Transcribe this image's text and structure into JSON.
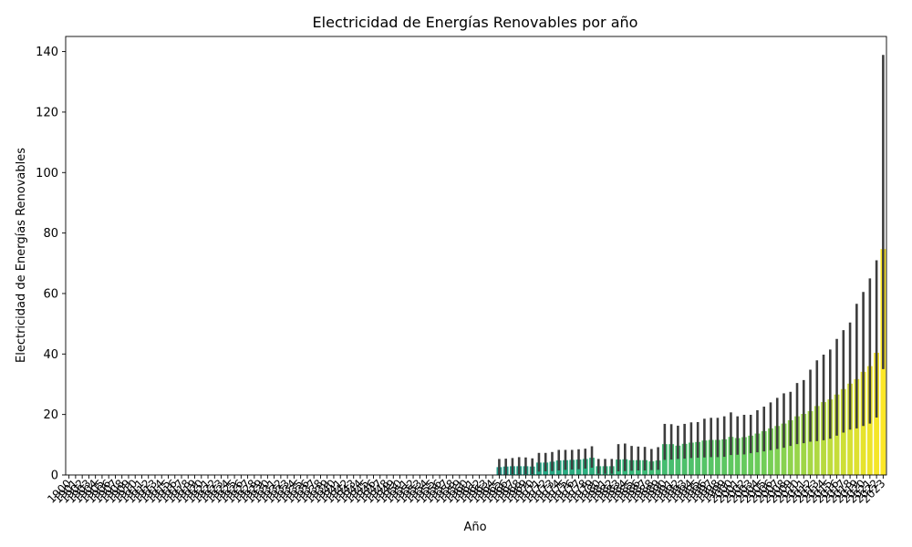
{
  "chart_data": {
    "type": "bar",
    "title": "Electricidad de Energías Renovables por año",
    "xlabel": "Año",
    "ylabel": "Electricidad de Energías Renovables",
    "ylim": [
      0,
      145
    ],
    "yticks": [
      0,
      20,
      40,
      60,
      80,
      100,
      120,
      140
    ],
    "grid": false,
    "legend": "none",
    "palette": "viridis",
    "categories": [
      "1900",
      "1901",
      "1902",
      "1903",
      "1904",
      "1905",
      "1906",
      "1907",
      "1908",
      "1909",
      "1910",
      "1911",
      "1912",
      "1913",
      "1914",
      "1915",
      "1916",
      "1917",
      "1918",
      "1919",
      "1920",
      "1921",
      "1922",
      "1923",
      "1924",
      "1925",
      "1926",
      "1927",
      "1928",
      "1929",
      "1930",
      "1931",
      "1932",
      "1933",
      "1934",
      "1935",
      "1936",
      "1937",
      "1938",
      "1939",
      "1940",
      "1941",
      "1942",
      "1943",
      "1944",
      "1945",
      "1946",
      "1947",
      "1948",
      "1949",
      "1950",
      "1951",
      "1952",
      "1953",
      "1954",
      "1955",
      "1956",
      "1957",
      "1958",
      "1959",
      "1960",
      "1961",
      "1962",
      "1963",
      "1964",
      "1965",
      "1966",
      "1967",
      "1968",
      "1969",
      "1970",
      "1971",
      "1972",
      "1973",
      "1974",
      "1975",
      "1976",
      "1977",
      "1978",
      "1979",
      "1980",
      "1981",
      "1982",
      "1983",
      "1984",
      "1985",
      "1986",
      "1987",
      "1988",
      "1989",
      "1990",
      "1991",
      "1992",
      "1993",
      "1994",
      "1995",
      "1996",
      "1997",
      "1998",
      "1999",
      "2000",
      "2001",
      "2002",
      "2003",
      "2004",
      "2005",
      "2006",
      "2007",
      "2008",
      "2009",
      "2010",
      "2011",
      "2012",
      "2013",
      "2014",
      "2015",
      "2016",
      "2017",
      "2018",
      "2019",
      "2020",
      "2021",
      "2022",
      "2023"
    ],
    "values": [
      0,
      0,
      0,
      0,
      0,
      0,
      0,
      0,
      0,
      0,
      0,
      0,
      0,
      0,
      0,
      0,
      0,
      0,
      0,
      0,
      0,
      0,
      0,
      0,
      0,
      0,
      0,
      0,
      0,
      0,
      0,
      0,
      0,
      0,
      0,
      0,
      0,
      0,
      0,
      0,
      0,
      0,
      0,
      0,
      0,
      0,
      0,
      0,
      0,
      0,
      0,
      0,
      0,
      0,
      0,
      0,
      0,
      0,
      0,
      0,
      0,
      0,
      0,
      0,
      0,
      2.6,
      2.8,
      2.9,
      2.9,
      2.9,
      2.8,
      4.1,
      4.1,
      4.4,
      4.8,
      4.9,
      5.0,
      5.1,
      5.3,
      5.7,
      2.9,
      2.9,
      2.9,
      5.1,
      5.2,
      4.9,
      4.9,
      4.9,
      4.5,
      4.8,
      10.2,
      10.2,
      9.7,
      10.3,
      10.7,
      10.9,
      11.4,
      11.6,
      11.6,
      11.8,
      12.6,
      12.2,
      12.5,
      13.0,
      13.7,
      14.5,
      15.4,
      16.2,
      17.0,
      18.1,
      19.4,
      20.2,
      21.1,
      22.8,
      24.1,
      25.0,
      26.6,
      28.4,
      30.2,
      31.7,
      34.1,
      36.0,
      40.4,
      74.7
    ],
    "error_high": [
      0,
      0,
      0,
      0,
      0,
      0,
      0,
      0,
      0,
      0,
      0,
      0,
      0,
      0,
      0,
      0,
      0,
      0,
      0,
      0,
      0,
      0,
      0,
      0,
      0,
      0,
      0,
      0,
      0,
      0,
      0,
      0,
      0,
      0,
      0,
      0,
      0,
      0,
      0,
      0,
      0,
      0,
      0,
      0,
      0,
      0,
      0,
      0,
      0,
      0,
      0,
      0,
      0,
      0,
      0,
      0,
      0,
      0,
      0,
      0,
      0,
      0,
      0,
      0,
      0,
      5.3,
      5.4,
      5.6,
      5.9,
      5.8,
      5.5,
      7.3,
      7.3,
      7.6,
      8.3,
      8.3,
      8.3,
      8.5,
      8.7,
      9.5,
      5.3,
      5.3,
      5.3,
      10.2,
      10.4,
      9.6,
      9.4,
      9.3,
      8.6,
      9.2,
      16.9,
      16.8,
      16.3,
      16.9,
      17.4,
      17.5,
      18.6,
      18.9,
      18.9,
      19.4,
      20.7,
      19.4,
      19.9,
      19.9,
      21.4,
      22.6,
      24.0,
      25.5,
      27.0,
      27.5,
      30.4,
      31.4,
      34.8,
      37.9,
      39.8,
      41.5,
      45.0,
      47.9,
      50.4,
      56.6,
      60.5,
      65.0,
      71.0,
      138.9
    ],
    "error_low": [
      0,
      0,
      0,
      0,
      0,
      0,
      0,
      0,
      0,
      0,
      0,
      0,
      0,
      0,
      0,
      0,
      0,
      0,
      0,
      0,
      0,
      0,
      0,
      0,
      0,
      0,
      0,
      0,
      0,
      0,
      0,
      0,
      0,
      0,
      0,
      0,
      0,
      0,
      0,
      0,
      0,
      0,
      0,
      0,
      0,
      0,
      0,
      0,
      0,
      0,
      0,
      0,
      0,
      0,
      0,
      0,
      0,
      0,
      0,
      0,
      0,
      0,
      0,
      0,
      0,
      0.2,
      0.2,
      0.3,
      0.3,
      0.3,
      0.3,
      1.1,
      1.2,
      1.3,
      1.5,
      1.7,
      1.8,
      1.9,
      2.1,
      2.4,
      0.4,
      0.4,
      0.4,
      1.2,
      1.3,
      1.4,
      1.5,
      1.5,
      1.6,
      1.7,
      5.0,
      5.1,
      5.3,
      5.4,
      5.6,
      5.7,
      5.8,
      5.9,
      5.9,
      6.0,
      6.6,
      6.7,
      6.8,
      7.2,
      7.5,
      7.8,
      8.2,
      8.6,
      9.0,
      9.6,
      10.2,
      10.5,
      11.0,
      11.2,
      11.5,
      12.0,
      13.0,
      14.0,
      15.0,
      15.4,
      16.2,
      17.0,
      19.0,
      35.0
    ]
  }
}
